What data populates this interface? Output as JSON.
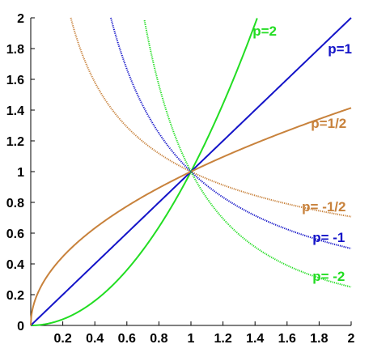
{
  "chart_data": {
    "type": "line",
    "xlim": [
      0,
      2
    ],
    "ylim": [
      0,
      2
    ],
    "x_ticks": [
      "0.2",
      "0.4",
      "0.6",
      "0.8",
      "1",
      "1.2",
      "1.4",
      "1.6",
      "1.8",
      "2"
    ],
    "y_ticks": [
      "0",
      "0.2",
      "0.4",
      "0.6",
      "0.8",
      "1",
      "1.2",
      "1.4",
      "1.6",
      "1.8",
      "2"
    ],
    "grid": false,
    "series": [
      {
        "name": "p=2",
        "p": 2,
        "color": "#22dd22",
        "style": "solid"
      },
      {
        "name": "p=1",
        "p": 1,
        "color": "#1414c8",
        "style": "solid"
      },
      {
        "name": "p=1/2",
        "p": 0.5,
        "color": "#c8823c",
        "style": "solid"
      },
      {
        "name": "p= -1/2",
        "p": -0.5,
        "color": "#c8823c",
        "style": "dotted"
      },
      {
        "name": "p= -1",
        "p": -1,
        "color": "#1414c8",
        "style": "dotted"
      },
      {
        "name": "p= -2",
        "p": -2,
        "color": "#22dd22",
        "style": "dotted"
      }
    ]
  }
}
